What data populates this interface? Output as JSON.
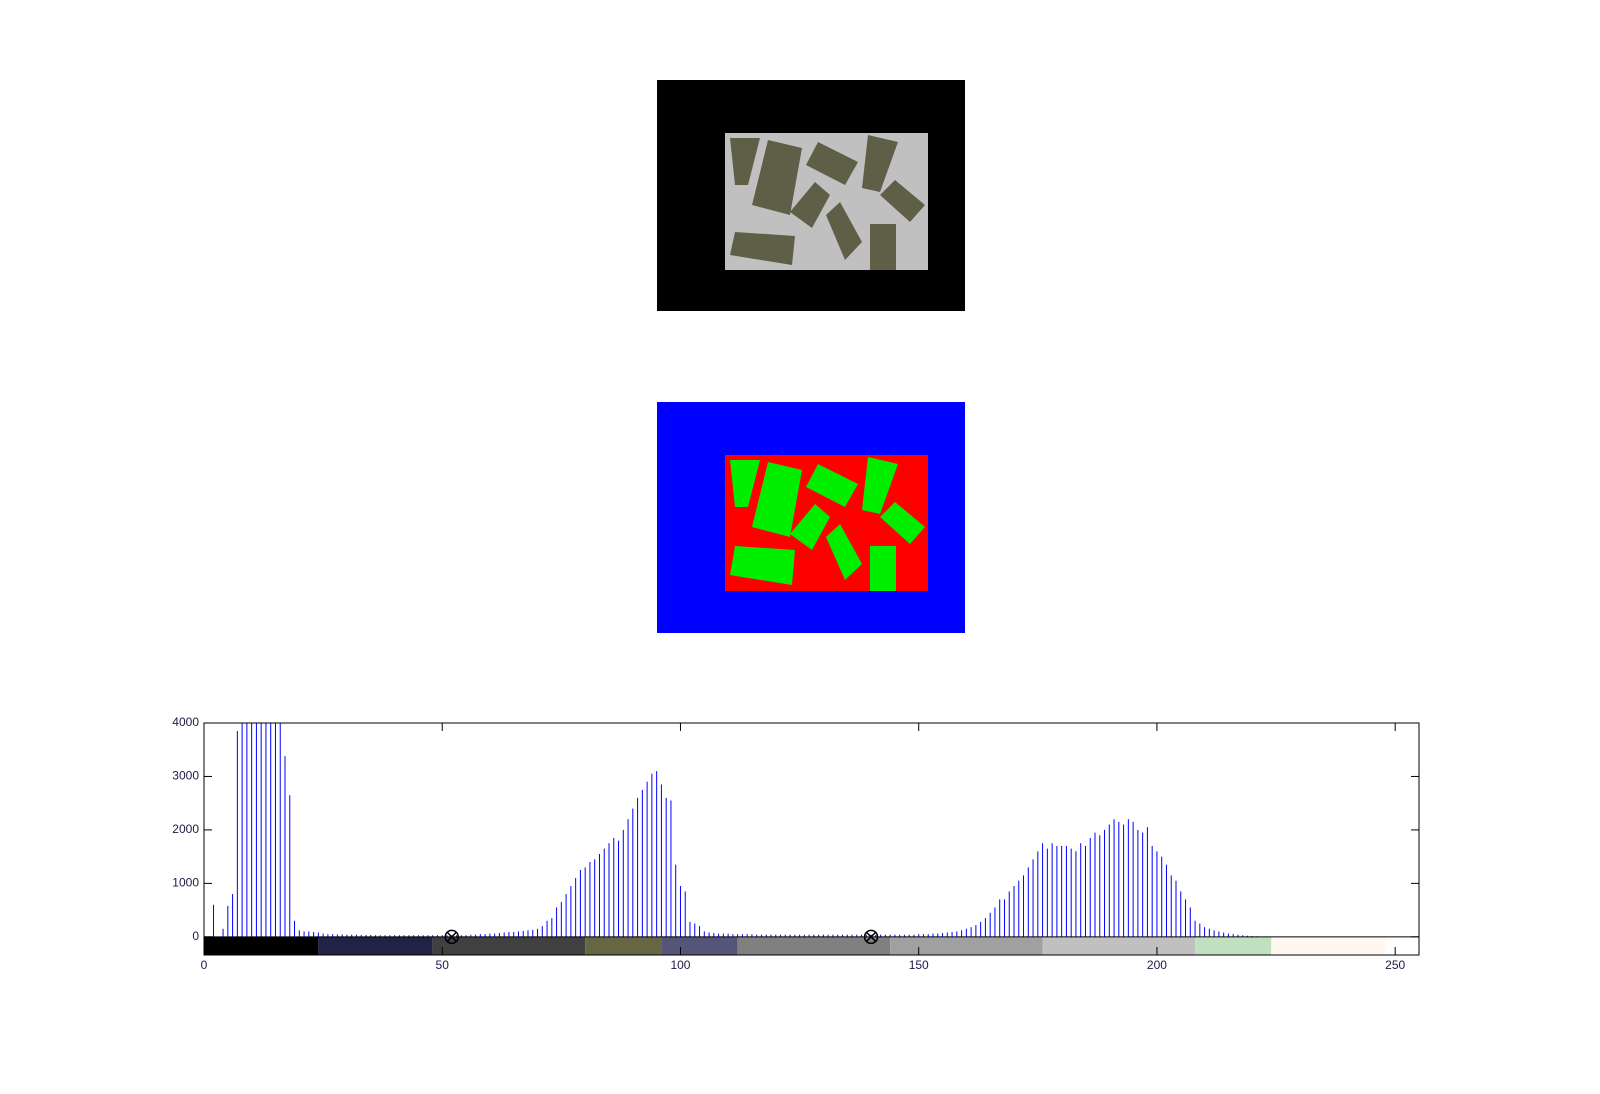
{
  "chart_data": {
    "type": "stem",
    "color": "#0000ff",
    "xlim": [
      0,
      255
    ],
    "ylim": [
      -340,
      4000
    ],
    "xticks": [
      0,
      50,
      100,
      150,
      200,
      250
    ],
    "yticks": [
      0,
      1000,
      2000,
      3000,
      4000
    ],
    "x": [
      0,
      1,
      2,
      3,
      4,
      5,
      6,
      7,
      8,
      9,
      10,
      11,
      12,
      13,
      14,
      15,
      16,
      17,
      18,
      19,
      20,
      21,
      22,
      23,
      24,
      25,
      26,
      27,
      28,
      29,
      30,
      31,
      32,
      33,
      34,
      35,
      36,
      37,
      38,
      39,
      40,
      41,
      42,
      43,
      44,
      45,
      46,
      47,
      48,
      49,
      50,
      51,
      52,
      53,
      54,
      55,
      56,
      57,
      58,
      59,
      60,
      61,
      62,
      63,
      64,
      65,
      66,
      67,
      68,
      69,
      70,
      71,
      72,
      73,
      74,
      75,
      76,
      77,
      78,
      79,
      80,
      81,
      82,
      83,
      84,
      85,
      86,
      87,
      88,
      89,
      90,
      91,
      92,
      93,
      94,
      95,
      96,
      97,
      98,
      99,
      100,
      101,
      102,
      103,
      104,
      105,
      106,
      107,
      108,
      109,
      110,
      111,
      112,
      113,
      114,
      115,
      116,
      117,
      118,
      119,
      120,
      121,
      122,
      123,
      124,
      125,
      126,
      127,
      128,
      129,
      130,
      131,
      132,
      133,
      134,
      135,
      136,
      137,
      138,
      139,
      140,
      141,
      142,
      143,
      144,
      145,
      146,
      147,
      148,
      149,
      150,
      151,
      152,
      153,
      154,
      155,
      156,
      157,
      158,
      159,
      160,
      161,
      162,
      163,
      164,
      165,
      166,
      167,
      168,
      169,
      170,
      171,
      172,
      173,
      174,
      175,
      176,
      177,
      178,
      179,
      180,
      181,
      182,
      183,
      184,
      185,
      186,
      187,
      188,
      189,
      190,
      191,
      192,
      193,
      194,
      195,
      196,
      197,
      198,
      199,
      200,
      201,
      202,
      203,
      204,
      205,
      206,
      207,
      208,
      209,
      210,
      211,
      212,
      213,
      214,
      215,
      216,
      217,
      218,
      219,
      220,
      221,
      222,
      223,
      224,
      225,
      226,
      227,
      228,
      229,
      230,
      231,
      232,
      233,
      234,
      235,
      236,
      237,
      238,
      239,
      240,
      241,
      242,
      243,
      244,
      245,
      246,
      247,
      248,
      249,
      250,
      251,
      252,
      253,
      254,
      255
    ],
    "values": [
      0,
      0,
      600,
      0,
      150,
      580,
      800,
      3850,
      4500,
      4500,
      4500,
      4500,
      4500,
      4500,
      4500,
      4500,
      4500,
      3380,
      2650,
      300,
      120,
      100,
      100,
      90,
      80,
      60,
      50,
      50,
      45,
      45,
      40,
      40,
      40,
      35,
      35,
      35,
      30,
      30,
      30,
      30,
      30,
      30,
      30,
      30,
      30,
      30,
      30,
      30,
      30,
      30,
      30,
      30,
      30,
      30,
      30,
      30,
      40,
      40,
      50,
      50,
      60,
      60,
      70,
      80,
      90,
      90,
      100,
      110,
      120,
      130,
      150,
      200,
      300,
      350,
      550,
      650,
      800,
      950,
      1100,
      1250,
      1300,
      1400,
      1450,
      1550,
      1650,
      1750,
      1850,
      1800,
      2000,
      2200,
      2400,
      2600,
      2750,
      2900,
      3050,
      3100,
      2850,
      2600,
      2550,
      1350,
      950,
      850,
      280,
      250,
      200,
      100,
      80,
      70,
      60,
      60,
      60,
      50,
      50,
      50,
      50,
      50,
      40,
      40,
      40,
      40,
      40,
      40,
      40,
      40,
      40,
      40,
      40,
      40,
      40,
      40,
      40,
      40,
      40,
      40,
      40,
      40,
      40,
      40,
      40,
      40,
      40,
      40,
      40,
      40,
      40,
      40,
      40,
      40,
      40,
      40,
      50,
      50,
      50,
      60,
      60,
      70,
      80,
      90,
      100,
      120,
      150,
      180,
      220,
      280,
      350,
      450,
      550,
      700,
      700,
      850,
      950,
      1050,
      1150,
      1300,
      1450,
      1600,
      1750,
      1650,
      1750,
      1700,
      1700,
      1700,
      1650,
      1600,
      1750,
      1700,
      1850,
      1950,
      1900,
      2000,
      2100,
      2200,
      2150,
      2100,
      2200,
      2150,
      2000,
      1950,
      2050,
      1700,
      1600,
      1500,
      1350,
      1150,
      1050,
      850,
      700,
      550,
      300,
      250,
      180,
      150,
      120,
      100,
      80,
      60,
      50,
      40,
      30,
      20,
      15,
      10,
      0,
      0,
      0,
      0,
      0,
      0,
      0,
      0,
      0,
      0,
      0,
      0,
      0,
      0,
      0,
      0,
      0,
      0,
      0,
      0,
      0,
      0,
      0,
      0,
      0,
      0,
      0,
      0,
      0,
      0,
      0,
      0,
      0,
      0
    ],
    "threshold_markers": [
      52,
      140
    ],
    "colorbar": [
      {
        "start": 0,
        "end": 24,
        "color": "#000000"
      },
      {
        "start": 24,
        "end": 48,
        "color": "#222244"
      },
      {
        "start": 48,
        "end": 80,
        "color": "#404040"
      },
      {
        "start": 80,
        "end": 96,
        "color": "#666644"
      },
      {
        "start": 96,
        "end": 112,
        "color": "#555577"
      },
      {
        "start": 112,
        "end": 144,
        "color": "#808080"
      },
      {
        "start": 144,
        "end": 176,
        "color": "#a0a0a0"
      },
      {
        "start": 176,
        "end": 208,
        "color": "#c0c0c0"
      },
      {
        "start": 208,
        "end": 224,
        "color": "#c0e0c0"
      },
      {
        "start": 224,
        "end": 248,
        "color": "#fff8f0"
      }
    ]
  }
}
